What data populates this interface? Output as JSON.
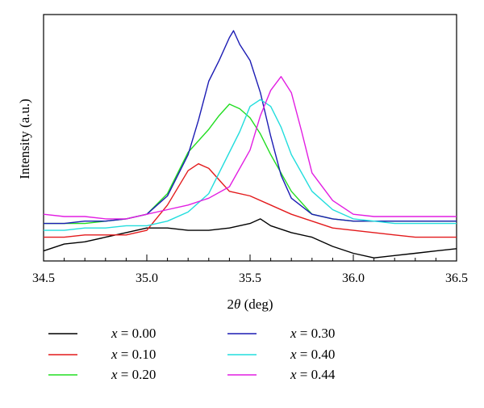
{
  "chart_data": {
    "type": "line",
    "xlabel_prefix": "2",
    "xlabel_symbol": "θ",
    "xlabel_suffix": " (deg)",
    "ylabel": "Intensity (a.u.)",
    "xlim": [
      34.5,
      36.5
    ],
    "ylim": [
      0,
      100
    ],
    "x_ticks": [
      "34.5",
      "35.0",
      "35.5",
      "36.0",
      "36.5"
    ],
    "grid": false,
    "legend_position": "bottom",
    "legend_variable": "x",
    "series": [
      {
        "name": "x = 0.00",
        "label_value": "= 0.00",
        "color": "#000000",
        "x": [
          34.5,
          34.6,
          34.7,
          34.8,
          34.9,
          35.0,
          35.1,
          35.2,
          35.3,
          35.4,
          35.5,
          35.55,
          35.6,
          35.7,
          35.8,
          35.9,
          36.0,
          36.1,
          36.2,
          36.3,
          36.4,
          36.5
        ],
        "y": [
          4,
          7,
          8,
          10,
          12,
          14,
          14,
          13,
          13,
          14,
          16,
          18,
          15,
          12,
          10,
          6,
          3,
          1,
          2,
          3,
          4,
          5
        ]
      },
      {
        "name": "x = 0.10",
        "label_value": "= 0.10",
        "color": "#e31a1c",
        "x": [
          34.5,
          34.6,
          34.7,
          34.8,
          34.9,
          35.0,
          35.1,
          35.2,
          35.25,
          35.3,
          35.35,
          35.4,
          35.5,
          35.6,
          35.7,
          35.8,
          35.9,
          36.0,
          36.1,
          36.2,
          36.3,
          36.4,
          36.5
        ],
        "y": [
          10,
          10,
          11,
          11,
          11,
          13,
          24,
          39,
          42,
          40,
          35,
          30,
          28,
          24,
          20,
          17,
          14,
          13,
          12,
          11,
          10,
          10,
          10
        ]
      },
      {
        "name": "x = 0.20",
        "label_value": "= 0.20",
        "color": "#22dd22",
        "x": [
          34.5,
          34.6,
          34.7,
          34.8,
          34.9,
          35.0,
          35.1,
          35.2,
          35.3,
          35.35,
          35.4,
          35.45,
          35.5,
          35.55,
          35.6,
          35.7,
          35.8,
          35.9,
          36.0,
          36.1,
          36.2,
          36.3,
          36.4,
          36.5
        ],
        "y": [
          16,
          16,
          16,
          17,
          18,
          20,
          29,
          47,
          57,
          63,
          68,
          66,
          62,
          55,
          46,
          30,
          20,
          18,
          17,
          17,
          17,
          17,
          17,
          17
        ]
      },
      {
        "name": "x = 0.30",
        "label_value": "= 0.30",
        "color": "#1c1cb4",
        "x": [
          34.5,
          34.6,
          34.7,
          34.8,
          34.9,
          35.0,
          35.1,
          35.2,
          35.25,
          35.3,
          35.35,
          35.4,
          35.42,
          35.45,
          35.5,
          35.55,
          35.6,
          35.65,
          35.7,
          35.8,
          35.9,
          36.0,
          36.1,
          36.2,
          36.3,
          36.4,
          36.5
        ],
        "y": [
          16,
          16,
          17,
          17,
          18,
          20,
          28,
          46,
          61,
          78,
          87,
          97,
          100,
          94,
          87,
          73,
          54,
          37,
          27,
          20,
          18,
          17,
          17,
          17,
          17,
          17,
          17
        ]
      },
      {
        "name": "x = 0.40",
        "label_value": "= 0.40",
        "color": "#22dddd",
        "x": [
          34.5,
          34.6,
          34.7,
          34.8,
          34.9,
          35.0,
          35.1,
          35.2,
          35.3,
          35.4,
          35.45,
          35.5,
          35.55,
          35.6,
          35.65,
          35.7,
          35.8,
          35.9,
          36.0,
          36.1,
          36.2,
          36.3,
          36.4,
          36.5
        ],
        "y": [
          13,
          13,
          14,
          14,
          15,
          15,
          17,
          21,
          29,
          47,
          56,
          67,
          70,
          67,
          58,
          46,
          30,
          22,
          18,
          17,
          16,
          16,
          16,
          16
        ]
      },
      {
        "name": "x = 0.44",
        "label_value": "= 0.44",
        "color": "#e21ee2",
        "x": [
          34.5,
          34.6,
          34.7,
          34.8,
          34.9,
          35.0,
          35.1,
          35.2,
          35.3,
          35.4,
          35.5,
          35.55,
          35.6,
          35.65,
          35.7,
          35.75,
          35.8,
          35.9,
          36.0,
          36.1,
          36.2,
          36.3,
          36.4,
          36.5
        ],
        "y": [
          20,
          19,
          19,
          18,
          18,
          20,
          22,
          24,
          27,
          32,
          48,
          63,
          74,
          80,
          73,
          56,
          38,
          26,
          20,
          19,
          19,
          19,
          19,
          19
        ]
      }
    ]
  }
}
